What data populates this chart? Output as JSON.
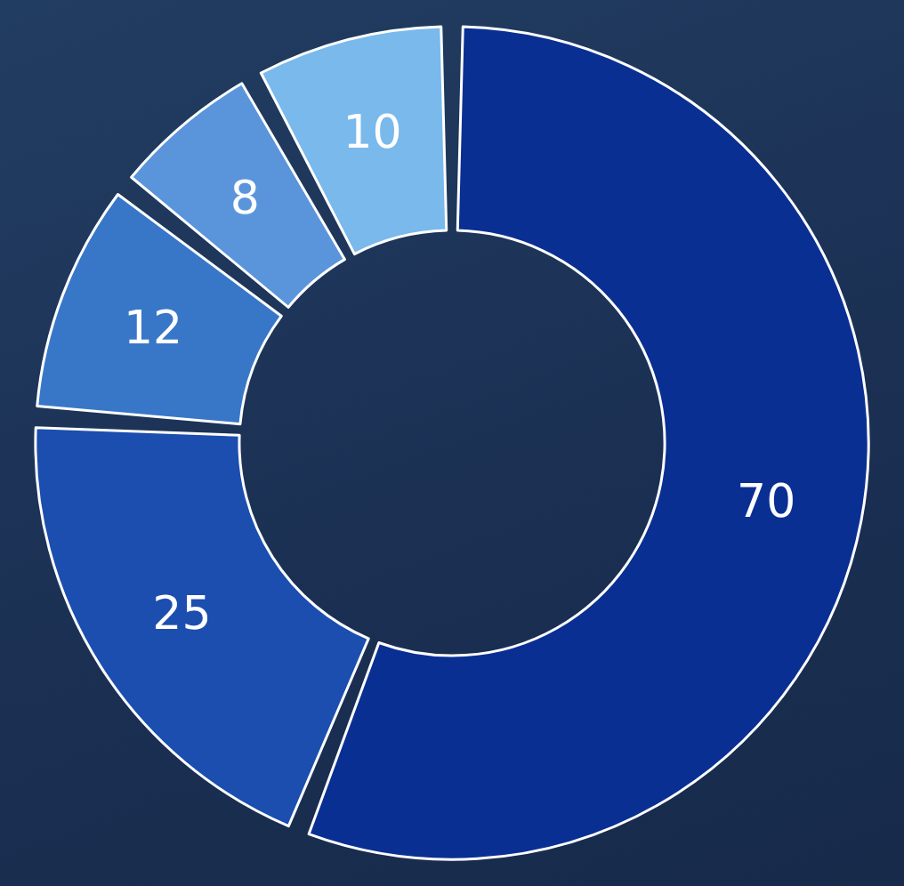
{
  "chart_data": {
    "type": "donut",
    "categories": [
      null,
      null,
      null,
      null,
      null
    ],
    "values": [
      70,
      25,
      12,
      8,
      10
    ],
    "colors": [
      "#0a2f93",
      "#1b4eae",
      "#3877c8",
      "#5a95dc",
      "#79b9ec"
    ],
    "data_labels": true
  }
}
